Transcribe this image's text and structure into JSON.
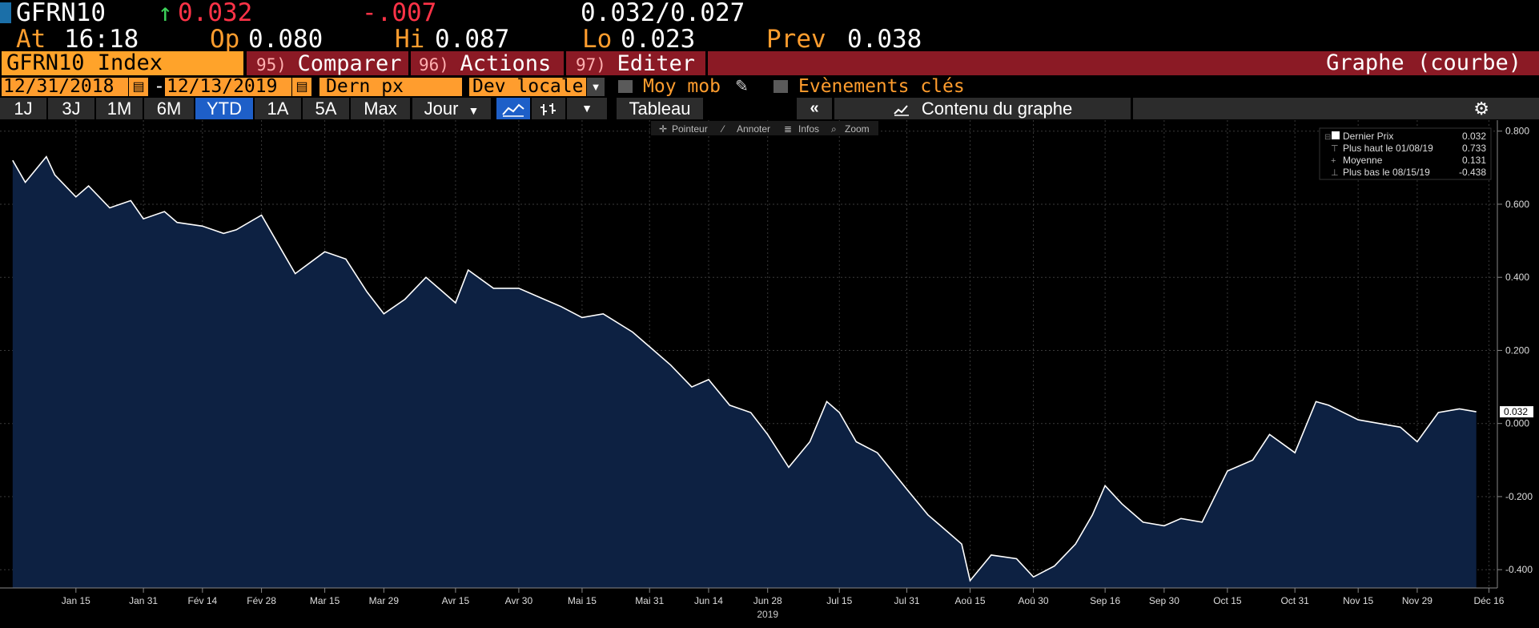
{
  "header": {
    "ticker": "GFRN10",
    "arrow": "↑",
    "last": "0.032",
    "change": "-.007",
    "bid_ask": "0.032/0.027",
    "at_label": "At",
    "time": "16:18",
    "open_label": "Op",
    "open": "0.080",
    "high_label": "Hi",
    "high": "0.087",
    "low_label": "Lo",
    "low": "0.023",
    "prev_label": "Prev",
    "prev": "0.038"
  },
  "toolbar": {
    "security": "GFRN10 Index",
    "compare_num": "95)",
    "compare": "Comparer",
    "actions_num": "96)",
    "actions": "Actions",
    "edit_num": "97)",
    "edit": "Editer",
    "chart_type": "Graphe (courbe)",
    "date_start": "12/31/2018",
    "date_sep": "-",
    "date_end": "12/13/2019",
    "field": "Dern px",
    "currency": "Dev locale",
    "moving_avg": "Moy mob",
    "key_events": "Evènements clés"
  },
  "ranges": [
    "1J",
    "3J",
    "1M",
    "6M",
    "YTD",
    "1A",
    "5A",
    "Max"
  ],
  "selected_range": "YTD",
  "period": "Jour",
  "table_label": "Tableau",
  "content_label": "Contenu du graphe",
  "chart_tools": [
    "Pointeur",
    "Annoter",
    "Infos",
    "Zoom"
  ],
  "legend": [
    {
      "label": "Dernier Prix",
      "value": "0.032"
    },
    {
      "label": "Plus haut le 01/08/19",
      "value": "0.733"
    },
    {
      "label": "Moyenne",
      "value": "0.131"
    },
    {
      "label": "Plus bas le 08/15/19",
      "value": "-0.438"
    }
  ],
  "colors": {
    "orange": "#ff9d2e",
    "red": "#ff3347",
    "green": "#3dd35a",
    "fill": "#0d2142",
    "line": "#ffffff",
    "selected": "#1e5fc8",
    "darkred": "#8b1a25"
  },
  "chart_data": {
    "type": "area",
    "ylim": [
      -0.45,
      0.83
    ],
    "y_ticks": [
      "0.800",
      "0.600",
      "0.400",
      "0.200",
      "0.000",
      "-0.200",
      "-0.400"
    ],
    "x_tick_labels": [
      "Jan 15",
      "Jan 31",
      "Fév 14",
      "Fév 28",
      "Mar 15",
      "Mar 29",
      "Avr 15",
      "Avr 30",
      "Mai 15",
      "Mai 31",
      "Jun 14",
      "Jun 28",
      "Jul 15",
      "Jul 31",
      "Aoû 15",
      "Aoû 30",
      "Sep 16",
      "Sep 30",
      "Oct 15",
      "Oct 31",
      "Nov 15",
      "Nov 29",
      "Déc 16"
    ],
    "year_label": "2019",
    "last_value_label": "0.032",
    "x": [
      "2018-12-31",
      "2019-01-03",
      "2019-01-08",
      "2019-01-10",
      "2019-01-15",
      "2019-01-18",
      "2019-01-23",
      "2019-01-28",
      "2019-01-31",
      "2019-02-05",
      "2019-02-08",
      "2019-02-14",
      "2019-02-19",
      "2019-02-22",
      "2019-02-28",
      "2019-03-05",
      "2019-03-08",
      "2019-03-15",
      "2019-03-20",
      "2019-03-25",
      "2019-03-29",
      "2019-04-03",
      "2019-04-08",
      "2019-04-12",
      "2019-04-15",
      "2019-04-18",
      "2019-04-24",
      "2019-04-30",
      "2019-05-06",
      "2019-05-10",
      "2019-05-15",
      "2019-05-20",
      "2019-05-27",
      "2019-05-31",
      "2019-06-05",
      "2019-06-10",
      "2019-06-14",
      "2019-06-19",
      "2019-06-24",
      "2019-06-28",
      "2019-07-03",
      "2019-07-08",
      "2019-07-12",
      "2019-07-15",
      "2019-07-19",
      "2019-07-24",
      "2019-07-31",
      "2019-08-05",
      "2019-08-08",
      "2019-08-13",
      "2019-08-15",
      "2019-08-20",
      "2019-08-26",
      "2019-08-30",
      "2019-09-04",
      "2019-09-09",
      "2019-09-13",
      "2019-09-16",
      "2019-09-20",
      "2019-09-25",
      "2019-09-30",
      "2019-10-04",
      "2019-10-09",
      "2019-10-15",
      "2019-10-21",
      "2019-10-25",
      "2019-10-31",
      "2019-11-05",
      "2019-11-08",
      "2019-11-15",
      "2019-11-20",
      "2019-11-25",
      "2019-11-29",
      "2019-12-04",
      "2019-12-09",
      "2019-12-13"
    ],
    "series": [
      {
        "values": [
          0.72,
          0.66,
          0.73,
          0.68,
          0.62,
          0.65,
          0.59,
          0.61,
          0.56,
          0.58,
          0.55,
          0.54,
          0.52,
          0.53,
          0.57,
          0.47,
          0.41,
          0.47,
          0.45,
          0.36,
          0.3,
          0.34,
          0.4,
          0.36,
          0.33,
          0.42,
          0.37,
          0.37,
          0.34,
          0.32,
          0.29,
          0.3,
          0.25,
          0.21,
          0.16,
          0.1,
          0.12,
          0.05,
          0.03,
          -0.03,
          -0.12,
          -0.05,
          0.06,
          0.03,
          -0.05,
          -0.08,
          -0.18,
          -0.25,
          -0.28,
          -0.33,
          -0.43,
          -0.36,
          -0.37,
          -0.42,
          -0.39,
          -0.33,
          -0.25,
          -0.17,
          -0.22,
          -0.27,
          -0.28,
          -0.26,
          -0.27,
          -0.13,
          -0.1,
          -0.03,
          -0.08,
          0.06,
          0.05,
          0.01,
          0.0,
          -0.01,
          -0.05,
          0.03,
          0.04,
          0.032
        ]
      }
    ]
  }
}
